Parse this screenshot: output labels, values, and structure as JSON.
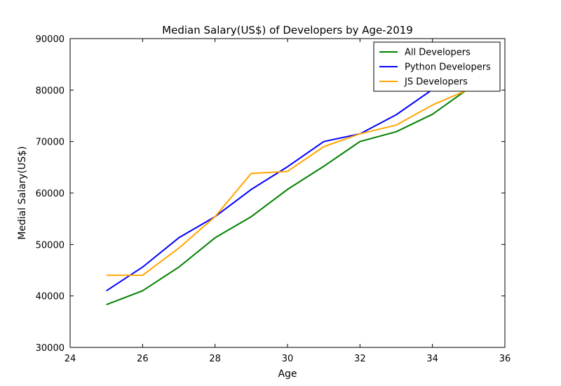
{
  "chart_data": {
    "type": "line",
    "title": "Median Salary(US$) of Developers by Age-2019",
    "xlabel": "Age",
    "ylabel": "Medial Salary(US$)",
    "xlim": [
      24,
      36
    ],
    "ylim": [
      30000,
      90000
    ],
    "xticks": [
      "24",
      "26",
      "28",
      "30",
      "32",
      "34",
      "36"
    ],
    "yticks": [
      "30000",
      "40000",
      "50000",
      "60000",
      "70000",
      "80000",
      "90000"
    ],
    "grid": false,
    "legend_position": "top-right",
    "x": [
      25,
      26,
      27,
      28,
      29,
      30,
      31,
      32,
      33,
      34,
      35
    ],
    "series": [
      {
        "name": "All Developers",
        "color": "#008000",
        "values": [
          38300,
          41000,
          45600,
          51300,
          55400,
          60700,
          65200,
          70000,
          71900,
          75300,
          80300
        ]
      },
      {
        "name": "Python Developers",
        "color": "#0000ff",
        "values": [
          41000,
          45600,
          51300,
          55400,
          60700,
          65100,
          70000,
          71500,
          75200,
          80100,
          81800
        ]
      },
      {
        "name": "JS Developers",
        "color": "#ffa500",
        "values": [
          44000,
          44000,
          49300,
          55400,
          63800,
          64200,
          69000,
          71500,
          73200,
          77100,
          80100
        ]
      }
    ]
  }
}
